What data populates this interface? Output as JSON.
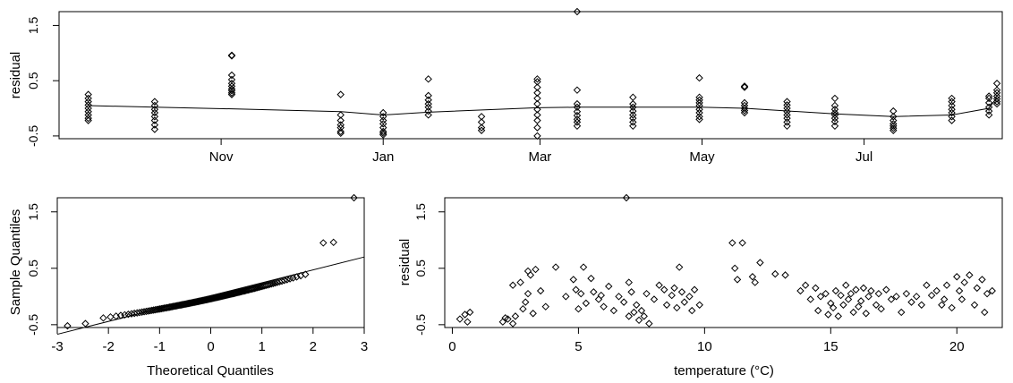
{
  "chart_data": [
    {
      "type": "scatter",
      "panel": "residuals-by-date",
      "xlabel": "",
      "ylabel": "residual",
      "x_tick_labels": [
        "Nov",
        "Jan",
        "Mar",
        "May",
        "Jul"
      ],
      "y_tick_labels": [
        "-0.5",
        "0.5",
        "1.5"
      ],
      "xlim": [
        "2012-09-01",
        "2013-08-22"
      ],
      "ylim": [
        -0.55,
        1.75
      ],
      "grid": false,
      "groups": [
        {
          "date": "2012-09-12",
          "values": [
            0.25,
            0.18,
            0.12,
            0.06,
            0.0,
            -0.06,
            -0.12,
            -0.18,
            -0.22
          ]
        },
        {
          "date": "2012-10-07",
          "values": [
            0.12,
            0.05,
            -0.02,
            -0.08,
            -0.15,
            -0.22,
            -0.3,
            -0.38
          ]
        },
        {
          "date": "2012-11-05",
          "values": [
            0.96,
            0.95,
            0.6,
            0.52,
            0.45,
            0.4,
            0.35,
            0.32,
            0.28,
            0.25
          ]
        },
        {
          "date": "2012-12-16",
          "values": [
            0.25,
            -0.12,
            -0.22,
            -0.3,
            -0.35,
            -0.42,
            -0.45
          ]
        },
        {
          "date": "2013-01-01",
          "values": [
            -0.08,
            -0.15,
            -0.22,
            -0.28,
            -0.35,
            -0.42,
            -0.45,
            -0.48
          ]
        },
        {
          "date": "2013-01-18",
          "values": [
            0.53,
            0.23,
            0.15,
            0.08,
            0.02,
            -0.05,
            -0.12
          ]
        },
        {
          "date": "2013-02-07",
          "values": [
            -0.15,
            -0.25,
            -0.35,
            -0.4
          ]
        },
        {
          "date": "2013-02-28",
          "values": [
            0.53,
            0.48,
            0.38,
            0.28,
            0.18,
            0.08,
            -0.02,
            -0.12,
            -0.22,
            -0.35,
            -0.5
          ]
        },
        {
          "date": "2013-03-15",
          "values": [
            1.75,
            0.33,
            0.08,
            0.02,
            -0.06,
            -0.13,
            -0.2,
            -0.25,
            -0.32
          ]
        },
        {
          "date": "2013-04-05",
          "values": [
            0.2,
            0.08,
            0.02,
            -0.05,
            -0.12,
            -0.18,
            -0.25,
            -0.32
          ]
        },
        {
          "date": "2013-04-30",
          "values": [
            0.55,
            0.2,
            0.15,
            0.1,
            0.05,
            -0.02,
            -0.08,
            -0.15,
            -0.2
          ]
        },
        {
          "date": "2013-05-17",
          "values": [
            0.4,
            0.38,
            0.1,
            0.05,
            0.0,
            -0.04,
            -0.08
          ]
        },
        {
          "date": "2013-06-02",
          "values": [
            0.12,
            0.06,
            0.0,
            -0.06,
            -0.12,
            -0.18,
            -0.25,
            -0.32
          ]
        },
        {
          "date": "2013-06-20",
          "values": [
            0.18,
            0.05,
            -0.02,
            -0.08,
            -0.12,
            -0.18,
            -0.24,
            -0.32
          ]
        },
        {
          "date": "2013-07-12",
          "values": [
            -0.05,
            -0.15,
            -0.22,
            -0.28,
            -0.32,
            -0.36,
            -0.4
          ]
        },
        {
          "date": "2013-08-03",
          "values": [
            0.18,
            0.12,
            0.05,
            -0.02,
            -0.08,
            -0.15,
            -0.22
          ]
        },
        {
          "date": "2013-08-17",
          "values": [
            0.22,
            0.18,
            0.1,
            0.02,
            -0.05,
            -0.12
          ]
        },
        {
          "date": "2013-08-20",
          "values": [
            0.45,
            0.33,
            0.28,
            0.22,
            0.17,
            0.12,
            0.08
          ]
        }
      ],
      "fitted_line": [
        {
          "date": "2012-09-12",
          "value": 0.05
        },
        {
          "date": "2012-10-07",
          "value": 0.02
        },
        {
          "date": "2012-11-05",
          "value": -0.01
        },
        {
          "date": "2012-12-16",
          "value": -0.06
        },
        {
          "date": "2013-01-01",
          "value": -0.12
        },
        {
          "date": "2013-01-18",
          "value": -0.07
        },
        {
          "date": "2013-02-28",
          "value": 0.01
        },
        {
          "date": "2013-03-15",
          "value": 0.02
        },
        {
          "date": "2013-04-30",
          "value": 0.02
        },
        {
          "date": "2013-05-17",
          "value": 0.0
        },
        {
          "date": "2013-06-20",
          "value": -0.1
        },
        {
          "date": "2013-07-12",
          "value": -0.15
        },
        {
          "date": "2013-08-03",
          "value": -0.12
        },
        {
          "date": "2013-08-17",
          "value": 0.0
        },
        {
          "date": "2013-08-20",
          "value": 0.2
        }
      ]
    },
    {
      "type": "scatter",
      "panel": "normal-qq",
      "xlabel": "Theoretical Quantiles",
      "ylabel": "Sample Quantiles",
      "x_tick_labels": [
        "-3",
        "-2",
        "-1",
        "0",
        "1",
        "2",
        "3"
      ],
      "y_tick_labels": [
        "-0.5",
        "0.5",
        "1.5"
      ],
      "xlim": [
        -3,
        3
      ],
      "ylim": [
        -0.55,
        1.75
      ],
      "grid": false,
      "sample_size": 140,
      "points": [
        {
          "x": -2.8,
          "y": -0.52
        },
        {
          "x": -2.45,
          "y": -0.48
        },
        {
          "x": 2.2,
          "y": 0.95
        },
        {
          "x": 2.4,
          "y": 0.96
        },
        {
          "x": 2.8,
          "y": 1.75
        }
      ],
      "reference_line": {
        "x": [
          -3,
          3
        ],
        "y": [
          -0.67,
          0.7
        ]
      }
    },
    {
      "type": "scatter",
      "panel": "residuals-by-temperature",
      "xlabel": "temperature (°C)",
      "ylabel": "residual",
      "x_tick_labels": [
        "0",
        "5",
        "10",
        "15",
        "20"
      ],
      "y_tick_labels": [
        "-0.5",
        "0.5",
        "1.5"
      ],
      "xlim": [
        -0.3,
        21.8
      ],
      "ylim": [
        -0.55,
        1.75
      ],
      "grid": false,
      "x": [
        0.3,
        0.5,
        0.6,
        0.7,
        2.0,
        2.1,
        2.2,
        2.4,
        2.4,
        2.5,
        2.7,
        2.8,
        2.9,
        3.0,
        3.0,
        3.1,
        3.2,
        3.3,
        3.5,
        3.7,
        4.1,
        4.5,
        4.8,
        4.9,
        5.0,
        5.1,
        5.2,
        5.3,
        5.5,
        5.6,
        5.8,
        5.9,
        6.0,
        6.2,
        6.4,
        6.6,
        6.8,
        6.9,
        7.0,
        7.0,
        7.1,
        7.2,
        7.3,
        7.4,
        7.5,
        7.6,
        7.7,
        7.8,
        8.0,
        8.2,
        8.4,
        8.5,
        8.7,
        8.8,
        8.9,
        9.0,
        9.1,
        9.2,
        9.4,
        9.5,
        9.6,
        9.8,
        11.1,
        11.2,
        11.3,
        11.5,
        11.9,
        12.0,
        12.2,
        12.8,
        13.2,
        13.8,
        14.0,
        14.2,
        14.4,
        14.5,
        14.6,
        14.8,
        14.9,
        15.0,
        15.1,
        15.2,
        15.3,
        15.4,
        15.5,
        15.6,
        15.7,
        15.8,
        15.9,
        16.0,
        16.1,
        16.2,
        16.3,
        16.4,
        16.5,
        16.6,
        16.8,
        16.9,
        17.0,
        17.2,
        17.4,
        17.6,
        17.8,
        18.0,
        18.2,
        18.4,
        18.6,
        18.8,
        19.0,
        19.2,
        19.4,
        19.5,
        19.6,
        19.8,
        20.0,
        20.1,
        20.2,
        20.3,
        20.5,
        20.7,
        20.8,
        21.0,
        21.1,
        21.2,
        21.4
      ],
      "y": [
        -0.4,
        -0.32,
        -0.45,
        -0.28,
        -0.45,
        -0.38,
        -0.4,
        0.2,
        -0.48,
        -0.35,
        0.25,
        -0.22,
        -0.1,
        0.45,
        0.05,
        0.38,
        -0.3,
        0.48,
        0.1,
        -0.18,
        0.52,
        0.0,
        0.3,
        0.12,
        -0.22,
        0.05,
        0.52,
        -0.12,
        0.32,
        0.08,
        -0.05,
        0.02,
        -0.18,
        0.18,
        -0.25,
        0.0,
        -0.1,
        1.75,
        -0.35,
        0.25,
        0.08,
        -0.28,
        -0.15,
        -0.42,
        -0.25,
        -0.35,
        0.05,
        -0.48,
        -0.05,
        0.2,
        0.12,
        -0.15,
        0.02,
        0.15,
        -0.2,
        0.52,
        0.08,
        -0.1,
        0.0,
        -0.25,
        0.12,
        -0.15,
        0.95,
        0.5,
        0.3,
        0.95,
        0.35,
        0.25,
        0.6,
        0.4,
        0.38,
        0.1,
        0.2,
        -0.05,
        0.15,
        -0.25,
        0.0,
        0.05,
        -0.32,
        -0.12,
        -0.2,
        0.1,
        -0.35,
        0.02,
        -0.15,
        0.2,
        -0.05,
        0.05,
        -0.28,
        0.12,
        -0.18,
        -0.08,
        0.15,
        -0.3,
        0.0,
        0.1,
        -0.15,
        0.05,
        -0.22,
        0.12,
        -0.05,
        0.0,
        -0.28,
        0.05,
        -0.1,
        0.0,
        -0.15,
        0.2,
        0.02,
        0.1,
        -0.15,
        -0.05,
        0.2,
        -0.2,
        0.35,
        0.1,
        -0.05,
        0.25,
        0.38,
        -0.15,
        0.15,
        0.3,
        -0.28,
        0.05,
        0.1
      ]
    }
  ]
}
